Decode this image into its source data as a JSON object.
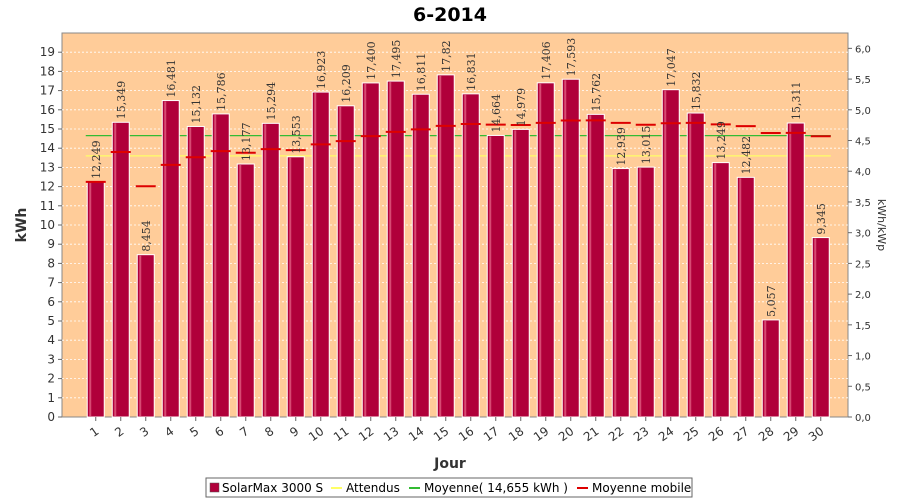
{
  "chart_data": {
    "type": "bar",
    "title": "6-2014",
    "xlabel": "Jour",
    "ylabel": "kWh",
    "y2label": "kWh/kWp",
    "ylim": [
      0,
      20
    ],
    "y2lim": [
      0,
      6.25
    ],
    "y_ticks": [
      "0",
      "1",
      "2",
      "3",
      "4",
      "5",
      "6",
      "7",
      "8",
      "9",
      "10",
      "11",
      "12",
      "13",
      "14",
      "15",
      "16",
      "17",
      "18",
      "19"
    ],
    "y2_ticks": [
      "0,0",
      "0,5",
      "1,0",
      "1,5",
      "2,0",
      "2,5",
      "3,0",
      "3,5",
      "4,0",
      "4,5",
      "5,0",
      "5,5",
      "6,0"
    ],
    "categories": [
      "1",
      "2",
      "3",
      "4",
      "5",
      "6",
      "7",
      "8",
      "9",
      "10",
      "11",
      "12",
      "13",
      "14",
      "15",
      "16",
      "17",
      "18",
      "19",
      "20",
      "21",
      "22",
      "23",
      "24",
      "25",
      "26",
      "27",
      "28",
      "29",
      "30"
    ],
    "series": [
      {
        "name": "SolarMax 3000 S",
        "kind": "bar",
        "color": "#b0003a",
        "values": [
          12.249,
          15.349,
          8.454,
          16.481,
          15.132,
          15.786,
          13.177,
          15.294,
          13.553,
          16.923,
          16.209,
          17.4,
          17.495,
          16.811,
          17.82,
          16.831,
          14.664,
          14.979,
          17.406,
          17.593,
          15.762,
          12.939,
          13.015,
          17.047,
          15.832,
          13.249,
          12.482,
          5.057,
          15.311,
          9.345
        ],
        "labels": [
          "12,249",
          "15,349",
          "8,454",
          "16,481",
          "15,132",
          "15,786",
          "13,177",
          "15,294",
          "13,553",
          "16,923",
          "16,209",
          "17,400",
          "17,495",
          "16,811",
          "17,82",
          "16,831",
          "14,664",
          "14,979",
          "17,406",
          "17,593",
          "15,762",
          "12,939",
          "13,015",
          "17,047",
          "15,832",
          "13,249",
          "12,482",
          "5,057",
          "15,311",
          "9,345"
        ]
      },
      {
        "name": "Attendus",
        "kind": "line",
        "color": "#ffff66",
        "value": 13.6
      },
      {
        "name": "Moyenne( 14,655 kWh )",
        "kind": "line",
        "color": "#33bb33",
        "value": 14.655
      },
      {
        "name": "Moyenne mobile",
        "kind": "step",
        "color": "#dd0000",
        "values": [
          12.249,
          13.8,
          12.02,
          13.13,
          13.53,
          13.85,
          13.76,
          13.95,
          13.9,
          14.2,
          14.37,
          14.63,
          14.85,
          14.98,
          15.16,
          15.26,
          15.23,
          15.21,
          15.32,
          15.44,
          15.45,
          15.32,
          15.22,
          15.3,
          15.32,
          15.24,
          15.15,
          14.79,
          14.8,
          14.62
        ]
      }
    ],
    "legend": {
      "position": "bottom-center",
      "entries": [
        "SolarMax 3000 S",
        "Attendus",
        "Moyenne( 14,655 kWh )",
        "Moyenne mobile"
      ]
    },
    "grid": true,
    "colors": {
      "plot_bg": "#ffcc99",
      "bar_fill": "#b0003a",
      "bar_edge": "#ffffff"
    }
  }
}
